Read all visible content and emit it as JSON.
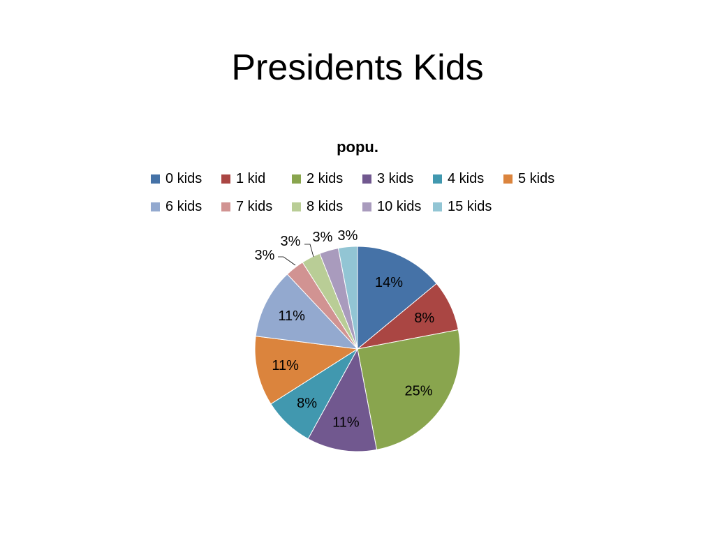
{
  "slide": {
    "title": "Presidents Kids"
  },
  "chart_data": {
    "type": "pie",
    "title": "popu.",
    "categories": [
      "0 kids",
      "1 kid",
      "2 kids",
      "3 kids",
      "4 kids",
      "5 kids",
      "6 kids",
      "7 kids",
      "8 kids",
      "10 kids",
      "15 kids"
    ],
    "values": [
      14,
      8,
      25,
      11,
      8,
      11,
      11,
      3,
      3,
      3,
      3
    ],
    "labels": [
      "14%",
      "8%",
      "25%",
      "11%",
      "8%",
      "11%",
      "11%",
      "3%",
      "3%",
      "3%",
      "3%"
    ],
    "colors": [
      "#4572a7",
      "#aa4643",
      "#89a54e",
      "#71588f",
      "#4198af",
      "#db843d",
      "#93a9cf",
      "#d19392",
      "#b9cd96",
      "#a99bbd",
      "#92c5d4"
    ],
    "legend_position": "top",
    "start_angle": "12 o'clock, clockwise"
  }
}
